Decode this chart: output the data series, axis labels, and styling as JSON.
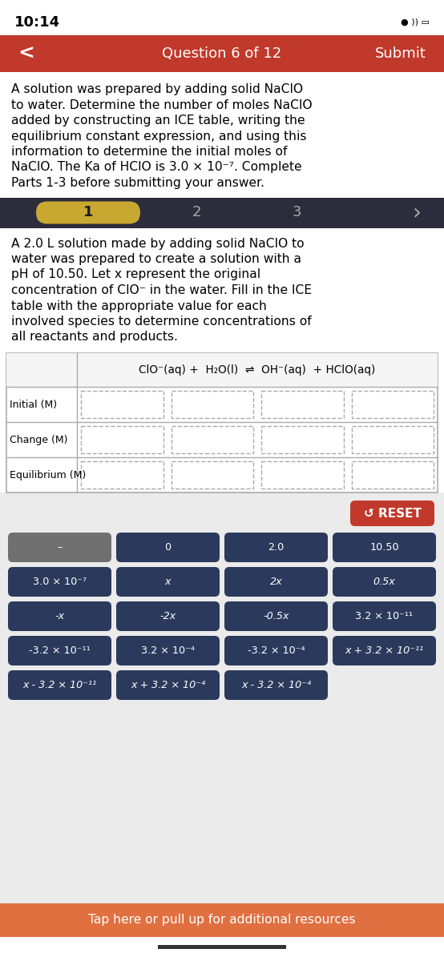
{
  "time": "10:14",
  "nav_bg": "#C0392B",
  "nav_text": "Question 6 of 12",
  "nav_submit": "Submit",
  "nav_back": "<",
  "intro_text": "A solution was prepared by adding solid NaClO\nto water. Determine the number of moles NaClO\nadded by constructing an ICE table, writing the\nequilibrium constant expression, and using this\ninformation to determine the initial moles of\nNaClO. The Ka of HClO is 3.0 × 10⁻⁷. Complete\nParts 1-3 before submitting your answer.",
  "tabs": [
    "1",
    "2",
    "3"
  ],
  "body_text": "A 2.0 L solution made by adding solid NaClO to\nwater was prepared to create a solution with a\npH of 10.50. Let x represent the original\nconcentration of ClO⁻ in the water. Fill in the ICE\ntable with the appropriate value for each\ninvolved species to determine concentrations of\nall reactants and products.",
  "equation": "ClO⁻(aq) +  H₂O(l)  ⇌  OH⁻(aq)  + HClO(aq)",
  "row_labels": [
    "Initial (M)",
    "Change (M)",
    "Equilibrium (M)"
  ],
  "bg_color": "#FFFFFF",
  "table_bg": "#FFFFFF",
  "button_bg_dark": "#2B3A5C",
  "button_bg_gray": "#707070",
  "button_text_color": "#FFFFFF",
  "reset_bg": "#C0392B",
  "bottom_bar_bg": "#E07040",
  "bottom_bar_text": "Tap here or pull up for additional resources",
  "buttons_row1": [
    "–",
    "0",
    "2.0",
    "10.50"
  ],
  "buttons_row2": [
    "3.0 × 10⁻⁷",
    "x",
    "2x",
    "0.5x"
  ],
  "buttons_row3": [
    "-x",
    "-2x",
    "-0.5x",
    "3.2 × 10⁻¹¹"
  ],
  "buttons_row4": [
    "-3.2 × 10⁻¹¹",
    "3.2 × 10⁻⁴",
    "-3.2 × 10⁻⁴",
    "x + 3.2 × 10⁻¹¹"
  ],
  "buttons_row5": [
    "x - 3.2 × 10⁻¹¹",
    "x + 3.2 × 10⁻⁴",
    "x - 3.2 × 10⁻⁴",
    null
  ]
}
